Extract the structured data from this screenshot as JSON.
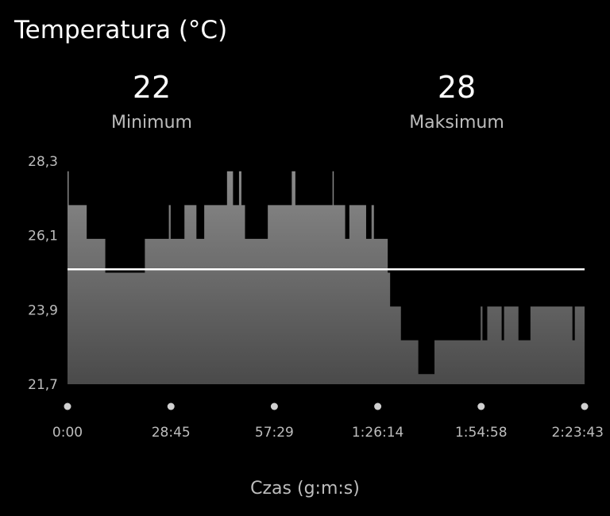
{
  "header": {
    "title": "Temperatura (°C)"
  },
  "stats": {
    "min_value": "22",
    "min_label": "Minimum",
    "max_value": "28",
    "max_label": "Maksimum"
  },
  "colors": {
    "background": "#000000",
    "area_top": "#8a8a8a",
    "area_bottom": "#4a4a4a",
    "avg_line": "#ffffff",
    "label": "#bdbdbd",
    "dot": "#d0d0d0"
  },
  "chart_data": {
    "type": "area",
    "title": "Temperatura (°C)",
    "xlabel": "Czas (g:m:s)",
    "ylabel": "",
    "ylim": [
      21.7,
      28.3
    ],
    "y_ticks": [
      "28,3",
      "26,1",
      "23,9",
      "21,7"
    ],
    "y_tick_values": [
      28.3,
      26.1,
      23.9,
      21.7
    ],
    "x_ticks": [
      "0:00",
      "28:45",
      "57:29",
      "1:26:14",
      "1:54:58",
      "2:23:43"
    ],
    "x_tick_values": [
      0,
      1725,
      3449,
      5174,
      6898,
      8623
    ],
    "xlim": [
      0,
      8623
    ],
    "average": 25.1,
    "series": [
      {
        "points": [
          [
            0,
            28.0
          ],
          [
            20,
            27.0
          ],
          [
            320,
            26.0
          ],
          [
            630,
            25.0
          ],
          [
            1290,
            26.0
          ],
          [
            1690,
            27.0
          ],
          [
            1720,
            26.0
          ],
          [
            1950,
            27.0
          ],
          [
            2150,
            26.0
          ],
          [
            2280,
            27.0
          ],
          [
            2660,
            28.0
          ],
          [
            2760,
            27.0
          ],
          [
            2860,
            28.0
          ],
          [
            2900,
            27.0
          ],
          [
            2960,
            26.0
          ],
          [
            3340,
            27.0
          ],
          [
            3740,
            28.0
          ],
          [
            3800,
            27.0
          ],
          [
            4420,
            28.0
          ],
          [
            4440,
            27.0
          ],
          [
            4630,
            26.0
          ],
          [
            4700,
            27.0
          ],
          [
            4980,
            26.0
          ],
          [
            5070,
            27.0
          ],
          [
            5110,
            26.0
          ],
          [
            5340,
            25.0
          ],
          [
            5380,
            24.0
          ],
          [
            5560,
            23.0
          ],
          [
            5850,
            22.0
          ],
          [
            6120,
            23.0
          ],
          [
            6890,
            24.0
          ],
          [
            6920,
            23.0
          ],
          [
            7000,
            24.0
          ],
          [
            7240,
            23.0
          ],
          [
            7280,
            24.0
          ],
          [
            7520,
            23.0
          ],
          [
            7720,
            24.0
          ],
          [
            8420,
            23.0
          ],
          [
            8460,
            24.0
          ],
          [
            8623,
            24.0
          ]
        ]
      }
    ]
  }
}
